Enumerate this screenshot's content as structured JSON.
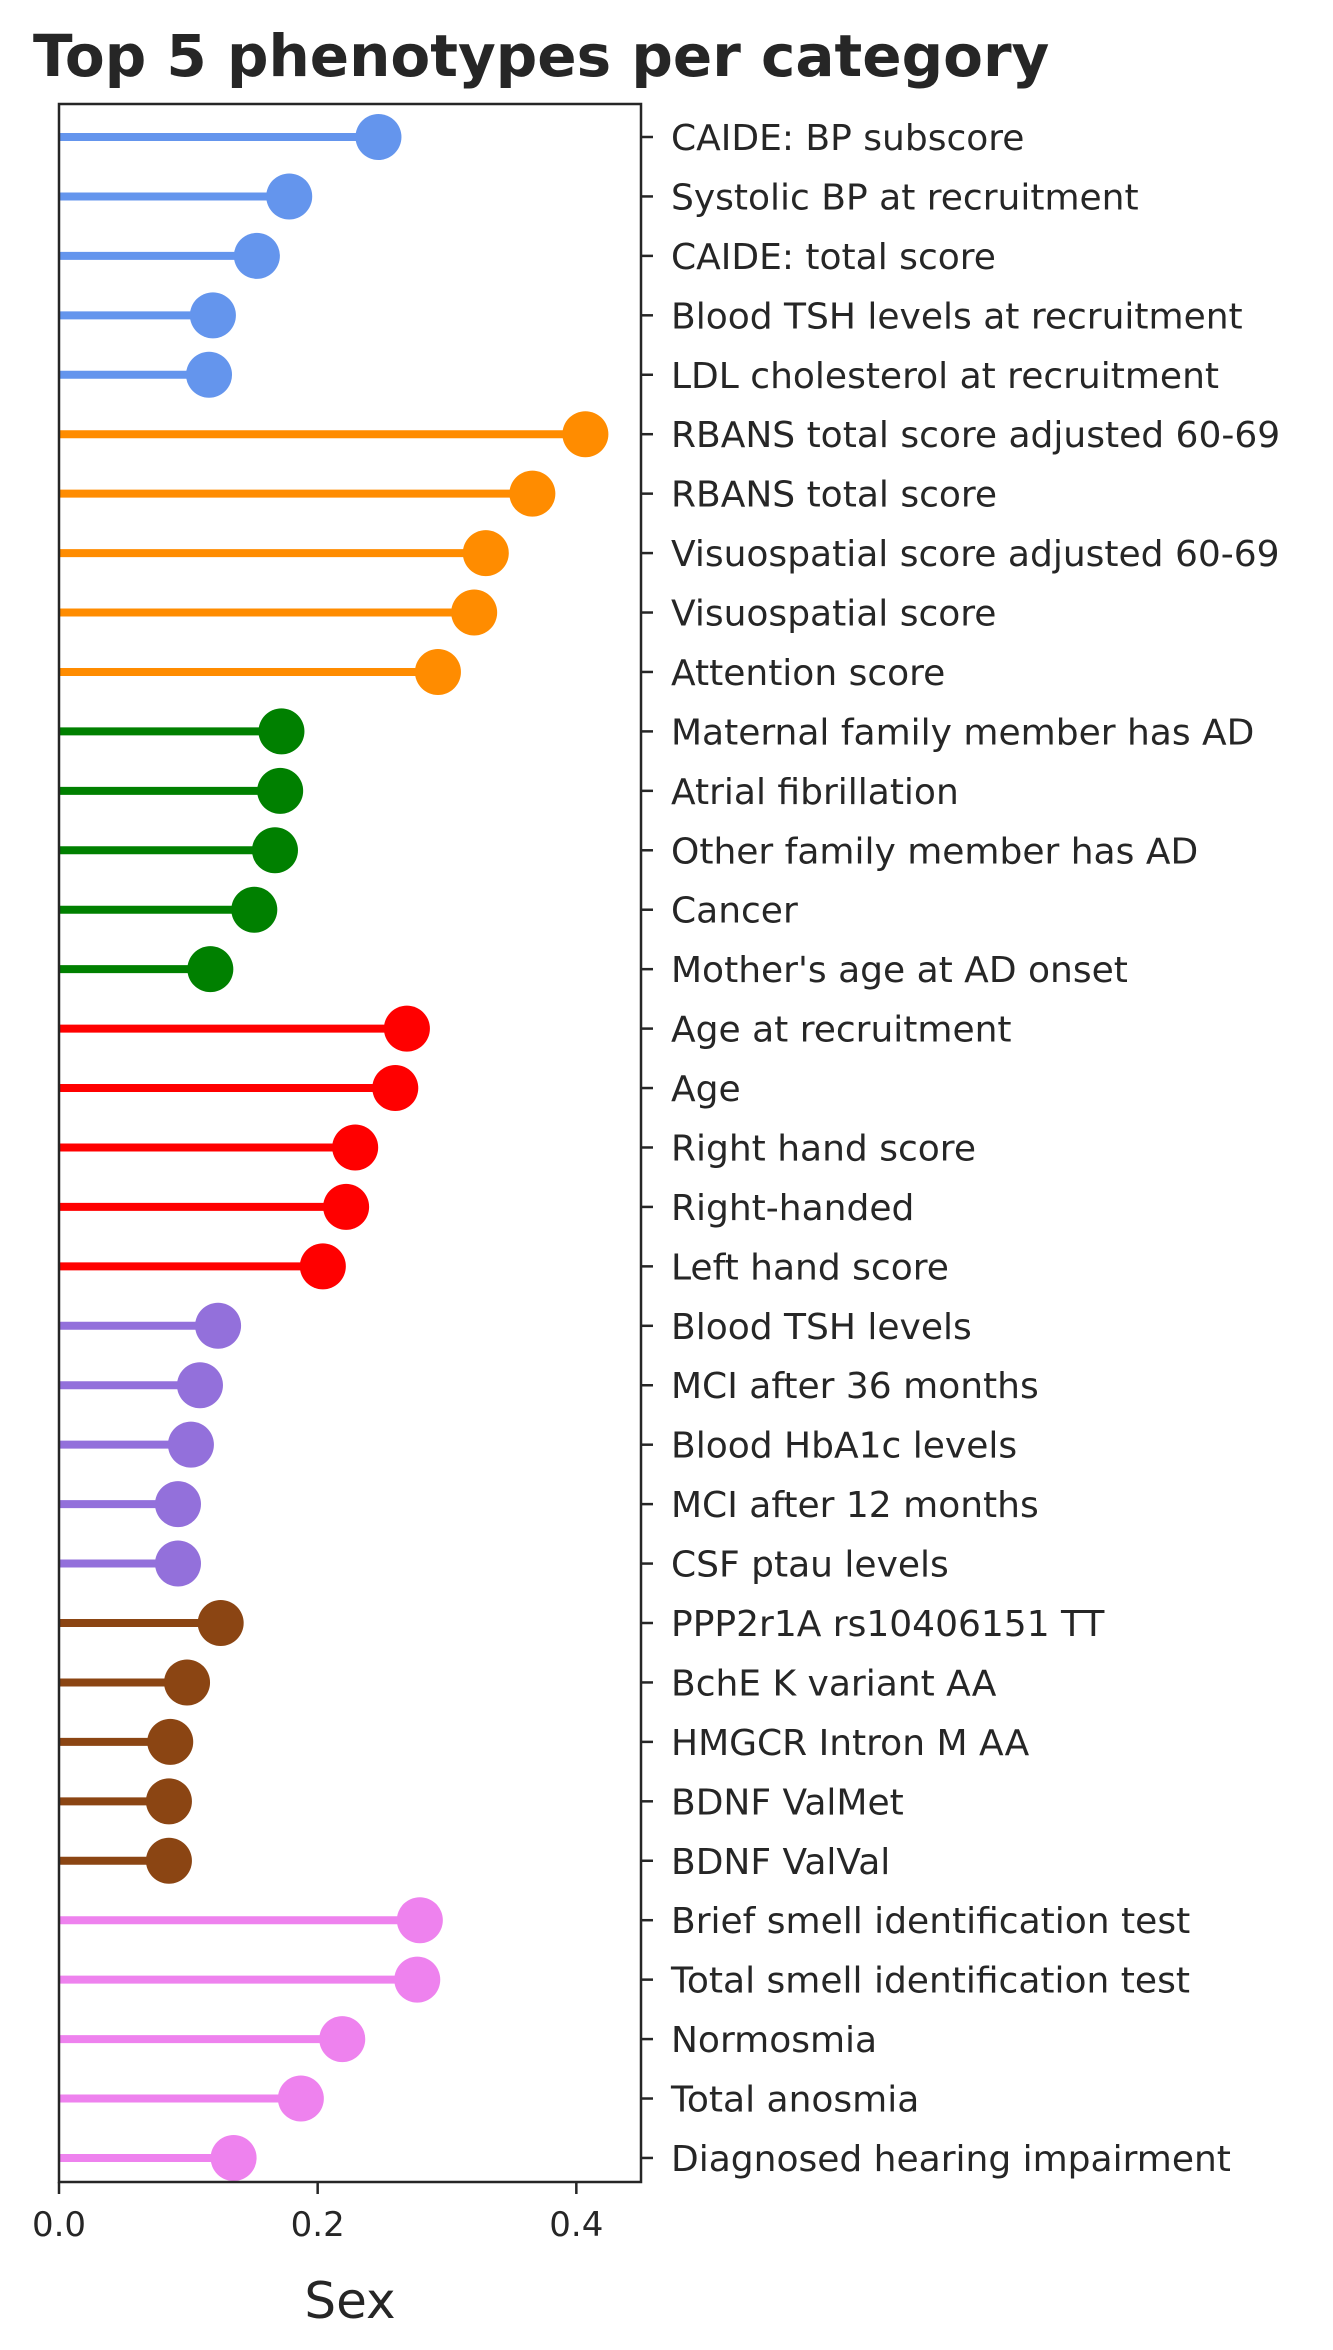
{
  "chart_data": {
    "type": "lollipop",
    "title": "Top 5 phenotypes per category",
    "xlabel": "Sex",
    "ylabel": "",
    "xlim": [
      0,
      0.45
    ],
    "xticks": [
      "0.0",
      "0.2",
      "0.4"
    ],
    "xtick_values": [
      0.0,
      0.2,
      0.4
    ],
    "grid": false,
    "legend": "none",
    "groups": [
      {
        "color": "#6495ED",
        "items": [
          {
            "label": "CAIDE: BP subscore",
            "value": 0.247
          },
          {
            "label": "Systolic BP at recruitment",
            "value": 0.178
          },
          {
            "label": "CAIDE: total score",
            "value": 0.153
          },
          {
            "label": "Blood TSH levels at recruitment",
            "value": 0.119
          },
          {
            "label": "LDL cholesterol at recruitment",
            "value": 0.116
          }
        ]
      },
      {
        "color": "#FF8C00",
        "items": [
          {
            "label": "RBANS total score adjusted 60-69",
            "value": 0.407
          },
          {
            "label": "RBANS total score",
            "value": 0.366
          },
          {
            "label": "Visuospatial score adjusted 60-69",
            "value": 0.33
          },
          {
            "label": "Visuospatial score",
            "value": 0.321
          },
          {
            "label": "Attention score",
            "value": 0.293
          }
        ]
      },
      {
        "color": "#008000",
        "items": [
          {
            "label": "Maternal family member has AD",
            "value": 0.172
          },
          {
            "label": "Atrial fibrillation",
            "value": 0.171
          },
          {
            "label": "Other family member has AD",
            "value": 0.167
          },
          {
            "label": "Cancer",
            "value": 0.151
          },
          {
            "label": "Mother's age at AD onset",
            "value": 0.117
          }
        ]
      },
      {
        "color": "#FF0000",
        "items": [
          {
            "label": "Age at recruitment",
            "value": 0.269
          },
          {
            "label": "Age",
            "value": 0.26
          },
          {
            "label": "Right hand score",
            "value": 0.229
          },
          {
            "label": "Right-handed",
            "value": 0.222
          },
          {
            "label": "Left hand score",
            "value": 0.204
          }
        ]
      },
      {
        "color": "#9370DB",
        "items": [
          {
            "label": "Blood TSH levels",
            "value": 0.123
          },
          {
            "label": "MCI after 36 months",
            "value": 0.109
          },
          {
            "label": "Blood HbA1c levels",
            "value": 0.102
          },
          {
            "label": "MCI after 12 months",
            "value": 0.092
          },
          {
            "label": "CSF ptau levels",
            "value": 0.092
          }
        ]
      },
      {
        "color": "#8B4513",
        "items": [
          {
            "label": "PPP2r1A rs10406151 TT",
            "value": 0.125
          },
          {
            "label": "BchE K variant AA",
            "value": 0.099
          },
          {
            "label": "HMGCR Intron M AA",
            "value": 0.086
          },
          {
            "label": "BDNF ValMet",
            "value": 0.085
          },
          {
            "label": "BDNF ValVal",
            "value": 0.085
          }
        ]
      },
      {
        "color": "#EE82EE",
        "items": [
          {
            "label": "Brief smell identification test",
            "value": 0.279
          },
          {
            "label": "Total smell identification test",
            "value": 0.277
          },
          {
            "label": "Normosmia",
            "value": 0.219
          },
          {
            "label": "Total anosmia",
            "value": 0.187
          },
          {
            "label": "Diagnosed hearing impairment",
            "value": 0.135
          }
        ]
      }
    ]
  }
}
